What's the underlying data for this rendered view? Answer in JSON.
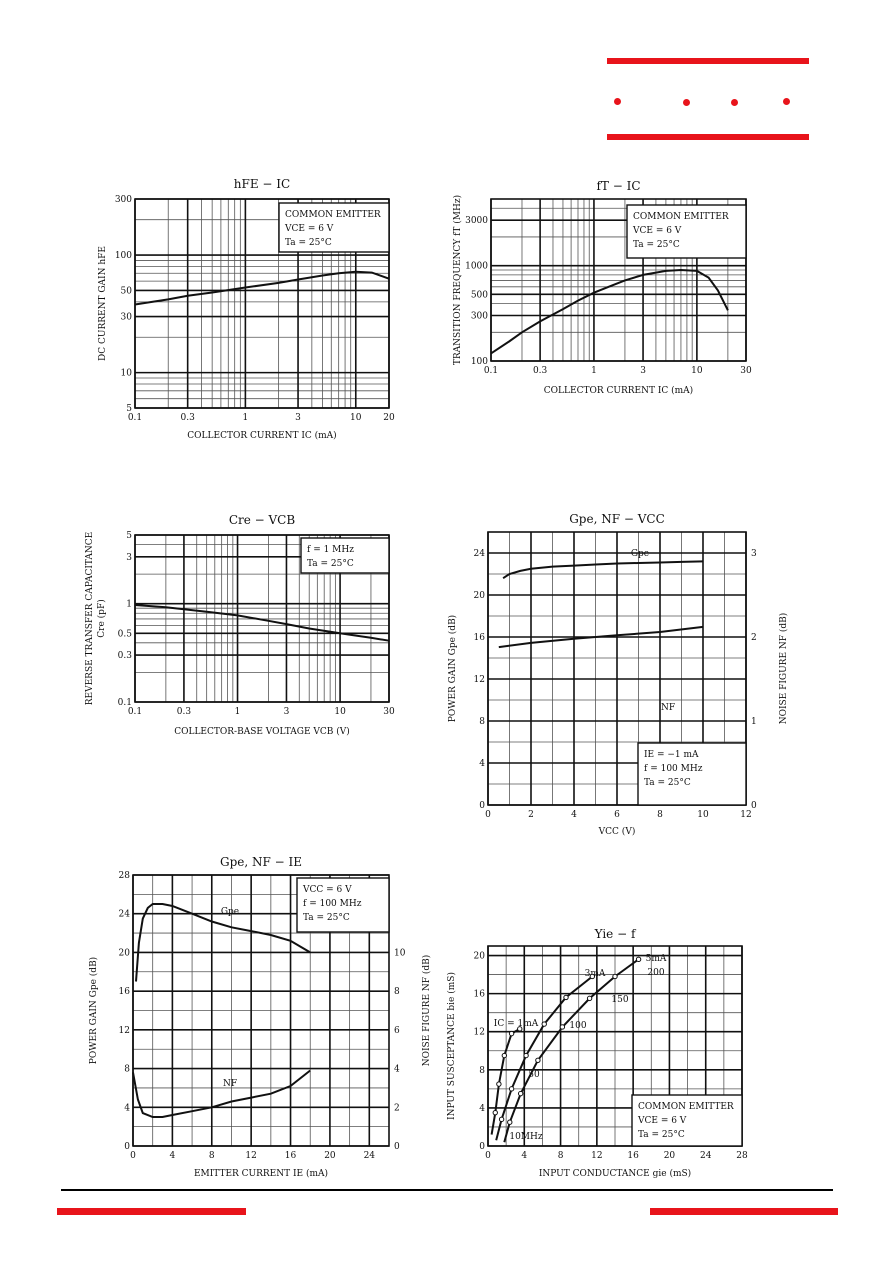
{
  "colors": {
    "accent": "#e8141b",
    "ink": "#111111"
  },
  "charts": [
    {
      "id": "hfe",
      "title": "hFE − IC",
      "box": [
        "COMMON EMITTER",
        "VCE = 6 V",
        "Ta = 25°C"
      ],
      "xlabel": "COLLECTOR CURRENT  IC  (mA)",
      "ylabel": "DC CURRENT GAIN  hFE",
      "xticks": [
        "0.1",
        "0.3",
        "1",
        "3",
        "10",
        "20"
      ],
      "yticks": [
        "5",
        "10",
        "30",
        "50",
        "100",
        "300"
      ]
    },
    {
      "id": "ft",
      "title": "fT − IC",
      "box": [
        "COMMON EMITTER",
        "VCE = 6 V",
        "Ta = 25°C"
      ],
      "xlabel": "COLLECTOR CURRENT  IC  (mA)",
      "ylabel": "TRANSITION FREQUENCY  fT  (MHz)",
      "xticks": [
        "0.1",
        "0.3",
        "1",
        "3",
        "10",
        "30"
      ],
      "yticks": [
        "100",
        "300",
        "500",
        "1000",
        "3000"
      ]
    },
    {
      "id": "cre",
      "title": "Cre − VCB",
      "box": [
        "f = 1 MHz",
        "Ta = 25°C"
      ],
      "xlabel": "COLLECTOR-BASE VOLTAGE  VCB  (V)",
      "ylabel": "REVERSE TRANSFER CAPACITANCE",
      "ylabel2": "Cre  (pF)",
      "xticks": [
        "0.1",
        "0.3",
        "1",
        "3",
        "10",
        "30"
      ],
      "yticks": [
        "0.1",
        "0.3",
        "0.5",
        "1",
        "3",
        "5"
      ]
    },
    {
      "id": "gvcc",
      "title": "Gpe, NF − VCC",
      "box": [
        "IE = −1 mA",
        "f = 100 MHz",
        "Ta = 25°C"
      ],
      "xlabel": "VCC  (V)",
      "ylabel": "POWER GAIN  Gpe  (dB)",
      "ylabel_right": "NOISE FIGURE  NF  (dB)",
      "xticks": [
        "0",
        "2",
        "4",
        "6",
        "8",
        "10",
        "12"
      ],
      "yticks": [
        "0",
        "4",
        "8",
        "12",
        "16",
        "20",
        "24"
      ],
      "yticks_right": [
        "0",
        "1",
        "2",
        "3"
      ],
      "curve_labels": [
        "Gpe",
        "NF"
      ]
    },
    {
      "id": "gie",
      "title": "Gpe, NF − IE",
      "box": [
        "VCC = 6 V",
        "f = 100 MHz",
        "Ta = 25°C"
      ],
      "xlabel": "EMITTER CURRENT  IE  (mA)",
      "ylabel": "POWER GAIN  Gpe  (dB)",
      "ylabel_right": "NOISE FIGURE  NF  (dB)",
      "xticks": [
        "0",
        "4",
        "8",
        "12",
        "16",
        "20",
        "24"
      ],
      "yticks": [
        "0",
        "4",
        "8",
        "12",
        "16",
        "20",
        "24",
        "28"
      ],
      "yticks_right": [
        "0",
        "2",
        "4",
        "6",
        "8",
        "10"
      ],
      "curve_labels": [
        "Gpe",
        "NF"
      ]
    },
    {
      "id": "yie",
      "title": "Yie − f",
      "box": [
        "COMMON EMITTER",
        "VCE = 6 V",
        "Ta = 25°C"
      ],
      "xlabel": "INPUT CONDUCTANCE  gie  (mS)",
      "ylabel": "INPUT SUSCEPTANCE  bie  (mS)",
      "xticks": [
        "0",
        "4",
        "8",
        "12",
        "16",
        "20",
        "24",
        "28"
      ],
      "yticks": [
        "0",
        "4",
        "8",
        "12",
        "16",
        "20"
      ],
      "curve_labels": [
        "IC = 1mA",
        "3mA",
        "5mA"
      ],
      "freq_labels": [
        "10MHz",
        "50",
        "100",
        "150",
        "200"
      ]
    }
  ],
  "chart_data": [
    {
      "type": "line",
      "title": "hFE − IC",
      "xlabel": "COLLECTOR CURRENT IC (mA)",
      "ylabel": "DC CURRENT GAIN hFE",
      "xscale": "log",
      "yscale": "log",
      "xlim": [
        0.1,
        20
      ],
      "ylim": [
        5,
        300
      ],
      "series": [
        {
          "x": [
            0.1,
            0.2,
            0.3,
            0.5,
            1,
            2,
            3,
            5,
            7,
            10,
            14,
            20
          ],
          "y": [
            38,
            42,
            45,
            48,
            53,
            58,
            62,
            67,
            70,
            72,
            71,
            63
          ]
        }
      ]
    },
    {
      "type": "line",
      "title": "fT − IC",
      "xlabel": "COLLECTOR CURRENT IC (mA)",
      "ylabel": "TRANSITION FREQUENCY fT (MHz)",
      "xscale": "log",
      "yscale": "log",
      "xlim": [
        0.1,
        30
      ],
      "ylim": [
        100,
        5000
      ],
      "series": [
        {
          "x": [
            0.1,
            0.15,
            0.2,
            0.3,
            0.5,
            0.7,
            1,
            1.5,
            2,
            3,
            5,
            7,
            10,
            13,
            16,
            20
          ],
          "y": [
            120,
            160,
            200,
            260,
            350,
            430,
            520,
            620,
            700,
            800,
            880,
            900,
            880,
            750,
            550,
            340
          ]
        }
      ]
    },
    {
      "type": "line",
      "title": "Cre − VCB",
      "xlabel": "COLLECTOR-BASE VOLTAGE VCB (V)",
      "ylabel": "REVERSE TRANSFER CAPACITANCE Cre (pF)",
      "xscale": "log",
      "yscale": "log",
      "xlim": [
        0.1,
        30
      ],
      "ylim": [
        0.1,
        5
      ],
      "series": [
        {
          "x": [
            0.1,
            0.2,
            0.3,
            0.5,
            1,
            2,
            3,
            5,
            10,
            20,
            30
          ],
          "y": [
            0.97,
            0.92,
            0.88,
            0.83,
            0.76,
            0.67,
            0.62,
            0.56,
            0.5,
            0.45,
            0.42
          ]
        }
      ]
    },
    {
      "type": "line",
      "title": "Gpe, NF − VCC",
      "xlabel": "VCC (V)",
      "ylabel": "POWER GAIN Gpe (dB)",
      "ylabel_right": "NOISE FIGURE NF (dB)",
      "xlim": [
        0,
        12
      ],
      "ylim": [
        0,
        26
      ],
      "y2lim": [
        0,
        3.25
      ],
      "series": [
        {
          "name": "Gpe",
          "axis": "left",
          "x": [
            0.7,
            1,
            1.5,
            2,
            3,
            4,
            5,
            6,
            7,
            8,
            9,
            10
          ],
          "y": [
            21.6,
            22.0,
            22.3,
            22.5,
            22.7,
            22.8,
            22.9,
            23.0,
            23.05,
            23.1,
            23.15,
            23.2
          ]
        },
        {
          "name": "NF",
          "axis": "right",
          "x": [
            0.5,
            2,
            4,
            6,
            8,
            10
          ],
          "y": [
            1.88,
            1.93,
            1.98,
            2.02,
            2.06,
            2.12
          ]
        }
      ]
    },
    {
      "type": "line",
      "title": "Gpe, NF − IE",
      "xlabel": "EMITTER CURRENT IE (mA)",
      "ylabel": "POWER GAIN Gpe (dB)",
      "ylabel_right": "NOISE FIGURE NF (dB)",
      "xlim": [
        0,
        26
      ],
      "ylim": [
        0,
        28
      ],
      "y2lim": [
        0,
        14
      ],
      "series": [
        {
          "name": "Gpe",
          "axis": "left",
          "x": [
            0.3,
            0.6,
            1,
            1.5,
            2,
            3,
            4,
            6,
            8,
            10,
            12,
            14,
            16,
            17,
            18
          ],
          "y": [
            17,
            21,
            23.5,
            24.6,
            25,
            25,
            24.8,
            24,
            23.2,
            22.6,
            22.2,
            21.8,
            21.2,
            20.6,
            20
          ]
        },
        {
          "name": "NF",
          "axis": "right",
          "x": [
            0,
            0.5,
            1,
            2,
            3,
            4,
            6,
            8,
            10,
            12,
            14,
            16,
            18
          ],
          "y": [
            3.8,
            2.4,
            1.7,
            1.5,
            1.5,
            1.6,
            1.8,
            2.0,
            2.3,
            2.5,
            2.7,
            3.1,
            3.9
          ]
        }
      ]
    },
    {
      "type": "line",
      "title": "Yie − f",
      "xlabel": "INPUT CONDUCTANCE gie (mS)",
      "ylabel": "INPUT SUSCEPTANCE bie (mS)",
      "xlim": [
        0,
        28
      ],
      "ylim": [
        0,
        21
      ],
      "series": [
        {
          "name": "IC = 1mA",
          "x": [
            0.4,
            0.8,
            1.2,
            1.8,
            2.6,
            3.5
          ],
          "y": [
            1.2,
            3.5,
            6.5,
            9.5,
            11.8,
            12.3
          ]
        },
        {
          "name": "3mA",
          "x": [
            0.9,
            1.5,
            2.6,
            4.2,
            6.2,
            8.6,
            11.5
          ],
          "y": [
            0.6,
            2.8,
            6.0,
            9.5,
            12.8,
            15.6,
            17.8
          ]
        },
        {
          "name": "5mA",
          "x": [
            1.8,
            2.4,
            3.6,
            5.5,
            8.2,
            11.2,
            14.0,
            16.6
          ],
          "y": [
            0.4,
            2.5,
            5.5,
            9.0,
            12.5,
            15.5,
            17.8,
            19.6
          ]
        }
      ]
    }
  ]
}
